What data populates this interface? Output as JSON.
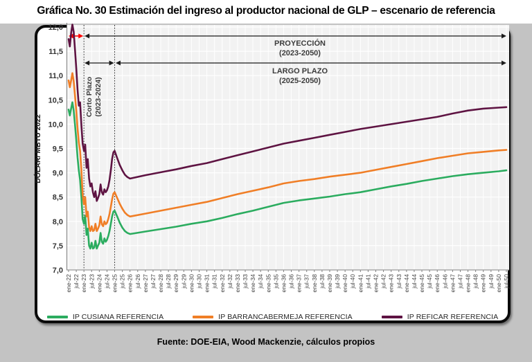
{
  "title": {
    "prefix": "Gráfica No. 30",
    "rest": " Estimación del ingreso al productor nacional de GLP – escenario de referencia"
  },
  "source_note": "Fuente: DOE-EIA, Wood Mackenzie, cálculos propios",
  "annotations": {
    "proyeccion": {
      "line1": "PROYECCIÓN",
      "line2": "(2023-2050)",
      "span_months": [
        12,
        342
      ]
    },
    "largo_plazo": {
      "line1": "LARGO PLAZO",
      "line2": "(2025-2050)",
      "span_months": [
        36,
        342
      ]
    },
    "corto_plazo": {
      "line1": "Corto Plazo",
      "line2": "(2023-2024)",
      "span_months": [
        12,
        36
      ]
    },
    "historical_red_span_months": [
      0,
      12
    ]
  },
  "colors": {
    "cusiana": "#2BAC5F",
    "barrancabermeja": "#F07E26",
    "reficar": "#5E1342",
    "red_arrow": "#FF0000",
    "black_arrow": "#1a1a1a",
    "plot_bg": "#f2f2f2",
    "gridline": "#ffffff",
    "axis": "#7f7f7f",
    "panel_outline": "#0b0b0b",
    "outer_bg": "#c3c3c3"
  },
  "chart_data": {
    "type": "line",
    "title": "Estimación del ingreso al productor nacional de GLP – escenario de referencia",
    "ylabel": "DÓLAR/ MBTU 2022",
    "ylim": [
      7.0,
      12.0
    ],
    "ytick_step": 0.5,
    "ytick_labels": [
      "12,0",
      "11,5",
      "11,0",
      "10,5",
      "10,0",
      "9,5",
      "9,0",
      "8,5",
      "8,0",
      "7,5",
      "7,0"
    ],
    "x_unit": "months since ene-2022",
    "x_months_per_tick": 6,
    "xtick_labels": [
      "ene-22",
      "jul-22",
      "ene-23",
      "jul-23",
      "ene-24",
      "jul-24",
      "ene-25",
      "jul-25",
      "ene-26",
      "jul-26",
      "ene-27",
      "jul-27",
      "ene-28",
      "jul-28",
      "ene-29",
      "jul-29",
      "ene-30",
      "jul-30",
      "ene-31",
      "jul-31",
      "ene-32",
      "jul-32",
      "ene-33",
      "jul-33",
      "ene-34",
      "jul-34",
      "ene-35",
      "jul-35",
      "ene-36",
      "jul-36",
      "ene-37",
      "jul-37",
      "ene-38",
      "jul-38",
      "ene-39",
      "jul-39",
      "ene-40",
      "jul-40",
      "ene-41",
      "jul-41",
      "ene-42",
      "jul-42",
      "ene-43",
      "jul-43",
      "ene-44",
      "jul-44",
      "ene-45",
      "jul-45",
      "ene-46",
      "jul-46",
      "ene-47",
      "jul-47",
      "ene-48",
      "jul-48",
      "ene-49",
      "jul-49",
      "ene-50",
      "jul-50"
    ],
    "grid": true,
    "legend_position": "bottom",
    "series": [
      {
        "name": "IP CUSIANA REFERENCIA",
        "color_key": "cusiana",
        "points": [
          [
            0,
            10.3
          ],
          [
            1,
            10.18
          ],
          [
            2,
            10.32
          ],
          [
            3,
            10.45
          ],
          [
            4,
            10.28
          ],
          [
            5,
            10.0
          ],
          [
            6,
            9.68
          ],
          [
            7,
            9.32
          ],
          [
            8,
            9.05
          ],
          [
            9,
            8.85
          ],
          [
            10,
            8.5
          ],
          [
            11,
            8.05
          ],
          [
            12,
            7.95
          ],
          [
            13,
            8.12
          ],
          [
            14,
            7.72
          ],
          [
            15,
            7.85
          ],
          [
            16,
            7.5
          ],
          [
            17,
            7.44
          ],
          [
            18,
            7.56
          ],
          [
            19,
            7.44
          ],
          [
            20,
            7.46
          ],
          [
            21,
            7.6
          ],
          [
            22,
            7.44
          ],
          [
            23,
            7.5
          ],
          [
            24,
            7.56
          ],
          [
            25,
            7.76
          ],
          [
            26,
            7.58
          ],
          [
            27,
            7.54
          ],
          [
            28,
            7.65
          ],
          [
            29,
            7.58
          ],
          [
            30,
            7.62
          ],
          [
            31,
            7.7
          ],
          [
            32,
            7.8
          ],
          [
            33,
            7.95
          ],
          [
            34,
            8.1
          ],
          [
            35,
            8.2
          ],
          [
            36,
            8.22
          ],
          [
            38,
            8.1
          ],
          [
            40,
            7.97
          ],
          [
            42,
            7.87
          ],
          [
            44,
            7.8
          ],
          [
            46,
            7.76
          ],
          [
            48,
            7.74
          ],
          [
            60,
            7.79
          ],
          [
            72,
            7.84
          ],
          [
            84,
            7.89
          ],
          [
            96,
            7.95
          ],
          [
            108,
            8.0
          ],
          [
            120,
            8.07
          ],
          [
            132,
            8.15
          ],
          [
            144,
            8.22
          ],
          [
            156,
            8.3
          ],
          [
            168,
            8.38
          ],
          [
            180,
            8.43
          ],
          [
            192,
            8.47
          ],
          [
            204,
            8.51
          ],
          [
            216,
            8.56
          ],
          [
            228,
            8.6
          ],
          [
            240,
            8.66
          ],
          [
            252,
            8.72
          ],
          [
            264,
            8.77
          ],
          [
            276,
            8.83
          ],
          [
            288,
            8.88
          ],
          [
            300,
            8.93
          ],
          [
            312,
            8.97
          ],
          [
            324,
            9.0
          ],
          [
            336,
            9.03
          ],
          [
            342,
            9.05
          ]
        ]
      },
      {
        "name": "IP BARRANCABERMEJA REFERENCIA",
        "color_key": "barrancabermeja",
        "points": [
          [
            0,
            10.9
          ],
          [
            1,
            10.76
          ],
          [
            2,
            10.9
          ],
          [
            3,
            11.05
          ],
          [
            4,
            10.88
          ],
          [
            5,
            10.6
          ],
          [
            6,
            10.28
          ],
          [
            7,
            9.92
          ],
          [
            8,
            9.62
          ],
          [
            9,
            9.45
          ],
          [
            10,
            9.05
          ],
          [
            11,
            8.55
          ],
          [
            12,
            8.35
          ],
          [
            13,
            8.5
          ],
          [
            14,
            8.1
          ],
          [
            15,
            8.2
          ],
          [
            16,
            7.88
          ],
          [
            17,
            7.8
          ],
          [
            18,
            7.9
          ],
          [
            19,
            7.8
          ],
          [
            20,
            7.82
          ],
          [
            21,
            7.95
          ],
          [
            22,
            7.8
          ],
          [
            23,
            7.85
          ],
          [
            24,
            7.92
          ],
          [
            25,
            8.1
          ],
          [
            26,
            7.94
          ],
          [
            27,
            7.9
          ],
          [
            28,
            8.0
          ],
          [
            29,
            7.94
          ],
          [
            30,
            7.97
          ],
          [
            31,
            8.05
          ],
          [
            32,
            8.15
          ],
          [
            33,
            8.3
          ],
          [
            34,
            8.45
          ],
          [
            35,
            8.57
          ],
          [
            36,
            8.6
          ],
          [
            38,
            8.48
          ],
          [
            40,
            8.36
          ],
          [
            42,
            8.26
          ],
          [
            44,
            8.18
          ],
          [
            46,
            8.13
          ],
          [
            48,
            8.1
          ],
          [
            60,
            8.16
          ],
          [
            72,
            8.22
          ],
          [
            84,
            8.28
          ],
          [
            96,
            8.34
          ],
          [
            108,
            8.4
          ],
          [
            120,
            8.48
          ],
          [
            132,
            8.56
          ],
          [
            144,
            8.63
          ],
          [
            156,
            8.7
          ],
          [
            168,
            8.78
          ],
          [
            180,
            8.83
          ],
          [
            192,
            8.87
          ],
          [
            204,
            8.92
          ],
          [
            216,
            8.96
          ],
          [
            228,
            9.0
          ],
          [
            240,
            9.06
          ],
          [
            252,
            9.12
          ],
          [
            264,
            9.18
          ],
          [
            276,
            9.24
          ],
          [
            288,
            9.3
          ],
          [
            300,
            9.35
          ],
          [
            312,
            9.4
          ],
          [
            324,
            9.43
          ],
          [
            336,
            9.46
          ],
          [
            342,
            9.47
          ]
        ]
      },
      {
        "name": "IP REFICAR REFERENCIA",
        "color_key": "reficar",
        "points": [
          [
            0,
            11.75
          ],
          [
            1,
            11.6
          ],
          [
            2,
            11.88
          ],
          [
            3,
            12.05
          ],
          [
            4,
            11.9
          ],
          [
            5,
            11.55
          ],
          [
            6,
            11.15
          ],
          [
            7,
            10.72
          ],
          [
            8,
            10.38
          ],
          [
            9,
            10.45
          ],
          [
            10,
            9.98
          ],
          [
            11,
            9.6
          ],
          [
            12,
            9.45
          ],
          [
            13,
            9.58
          ],
          [
            14,
            9.1
          ],
          [
            15,
            9.28
          ],
          [
            16,
            8.88
          ],
          [
            17,
            8.72
          ],
          [
            18,
            8.78
          ],
          [
            19,
            8.6
          ],
          [
            20,
            8.5
          ],
          [
            21,
            8.62
          ],
          [
            22,
            8.42
          ],
          [
            23,
            8.48
          ],
          [
            24,
            8.56
          ],
          [
            25,
            8.76
          ],
          [
            26,
            8.6
          ],
          [
            27,
            8.55
          ],
          [
            28,
            8.66
          ],
          [
            29,
            8.6
          ],
          [
            30,
            8.64
          ],
          [
            31,
            8.72
          ],
          [
            32,
            8.85
          ],
          [
            33,
            9.05
          ],
          [
            34,
            9.28
          ],
          [
            35,
            9.42
          ],
          [
            36,
            9.45
          ],
          [
            38,
            9.3
          ],
          [
            40,
            9.16
          ],
          [
            42,
            9.05
          ],
          [
            44,
            8.96
          ],
          [
            46,
            8.91
          ],
          [
            48,
            8.88
          ],
          [
            60,
            8.95
          ],
          [
            72,
            9.01
          ],
          [
            84,
            9.07
          ],
          [
            96,
            9.14
          ],
          [
            108,
            9.2
          ],
          [
            120,
            9.28
          ],
          [
            132,
            9.36
          ],
          [
            144,
            9.44
          ],
          [
            156,
            9.52
          ],
          [
            168,
            9.6
          ],
          [
            180,
            9.66
          ],
          [
            192,
            9.72
          ],
          [
            204,
            9.78
          ],
          [
            216,
            9.84
          ],
          [
            228,
            9.9
          ],
          [
            240,
            9.95
          ],
          [
            252,
            10.0
          ],
          [
            264,
            10.05
          ],
          [
            276,
            10.1
          ],
          [
            288,
            10.15
          ],
          [
            300,
            10.22
          ],
          [
            312,
            10.28
          ],
          [
            324,
            10.32
          ],
          [
            336,
            10.34
          ],
          [
            342,
            10.35
          ]
        ]
      }
    ]
  }
}
